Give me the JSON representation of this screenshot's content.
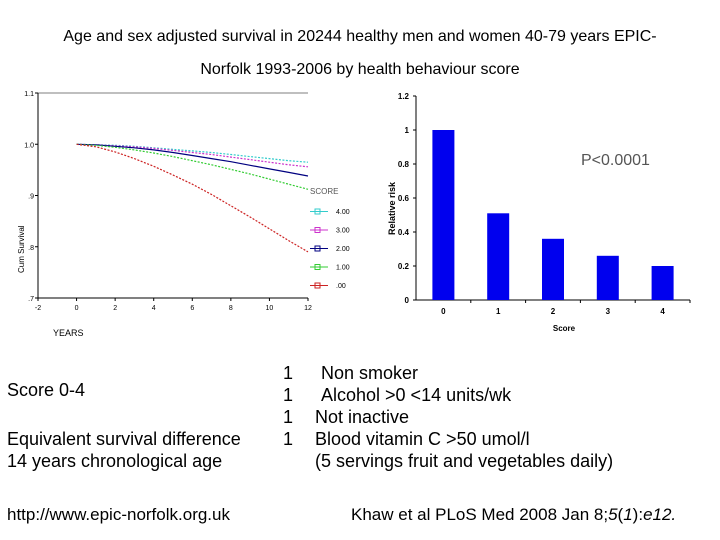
{
  "title_line1": "Age and sex adjusted survival in 20244 healthy men and women 40-79 years EPIC-",
  "title_line2": "Norfolk 1993-2006 by  health behaviour score",
  "chart_data": [
    {
      "type": "line",
      "xlabel": "YEARS",
      "ylabel": "Cum Survival",
      "xticks": [
        "-2",
        "0",
        "2",
        "4",
        "6",
        "8",
        "10",
        "12"
      ],
      "yticks": [
        "1.1",
        "1.0",
        ".9",
        ".8",
        ".7"
      ],
      "xlim": [
        -2,
        12
      ],
      "ylim": [
        0.7,
        1.1
      ],
      "legend_title": "SCORE",
      "x": [
        0,
        1,
        2,
        3,
        4,
        5,
        6,
        7,
        8,
        9,
        10,
        11,
        12
      ],
      "series": [
        {
          "name": "4.00",
          "color": "#33cccc",
          "values": [
            1.0,
            0.999,
            0.998,
            0.996,
            0.993,
            0.99,
            0.987,
            0.984,
            0.98,
            0.976,
            0.972,
            0.968,
            0.965
          ]
        },
        {
          "name": "3.00",
          "color": "#cc33cc",
          "values": [
            1.0,
            0.999,
            0.997,
            0.995,
            0.992,
            0.988,
            0.984,
            0.98,
            0.975,
            0.97,
            0.965,
            0.96,
            0.956
          ]
        },
        {
          "name": "2.00",
          "color": "#000080",
          "values": [
            1.0,
            0.999,
            0.996,
            0.993,
            0.989,
            0.984,
            0.978,
            0.972,
            0.966,
            0.959,
            0.952,
            0.945,
            0.938
          ]
        },
        {
          "name": "1.00",
          "color": "#33cc33",
          "values": [
            1.0,
            0.998,
            0.994,
            0.989,
            0.983,
            0.976,
            0.968,
            0.96,
            0.951,
            0.942,
            0.932,
            0.922,
            0.912
          ]
        },
        {
          "name": ".00",
          "color": "#cc2222",
          "values": [
            1.0,
            0.995,
            0.985,
            0.972,
            0.957,
            0.94,
            0.922,
            0.902,
            0.88,
            0.858,
            0.835,
            0.812,
            0.79
          ]
        }
      ]
    },
    {
      "type": "bar",
      "xlabel": "Score",
      "ylabel": "Relative risk",
      "categories": [
        "0",
        "1",
        "2",
        "3",
        "4"
      ],
      "values": [
        1.0,
        0.51,
        0.36,
        0.26,
        0.2
      ],
      "ylim": [
        0,
        1.2
      ],
      "yticks": [
        "0",
        "0.2",
        "0.4",
        "0.6",
        "0.8",
        "1",
        "1.2"
      ],
      "annotation": "P<0.0001",
      "color": "#0000ee"
    }
  ],
  "body": {
    "score_label": "Score 0-4",
    "equiv_line1": "Equivalent survival difference",
    "equiv_line2": "14 years chronological age",
    "ones": [
      "1",
      "1",
      "1",
      "1"
    ],
    "behaviours": [
      "Non smoker",
      "Alcohol >0 <14 units/wk",
      "Not inactive",
      "Blood vitamin C >50 umol/l",
      "(5 servings fruit and vegetables daily)"
    ]
  },
  "footer": {
    "url": "http://www.epic-norfolk.org.uk",
    "citation_pre": "Khaw et al PLoS Med 2008 Jan 8;",
    "citation_vol": "5",
    "citation_issue_open": "(",
    "citation_issue": "1",
    "citation_issue_close": "):",
    "citation_page": "e12."
  }
}
